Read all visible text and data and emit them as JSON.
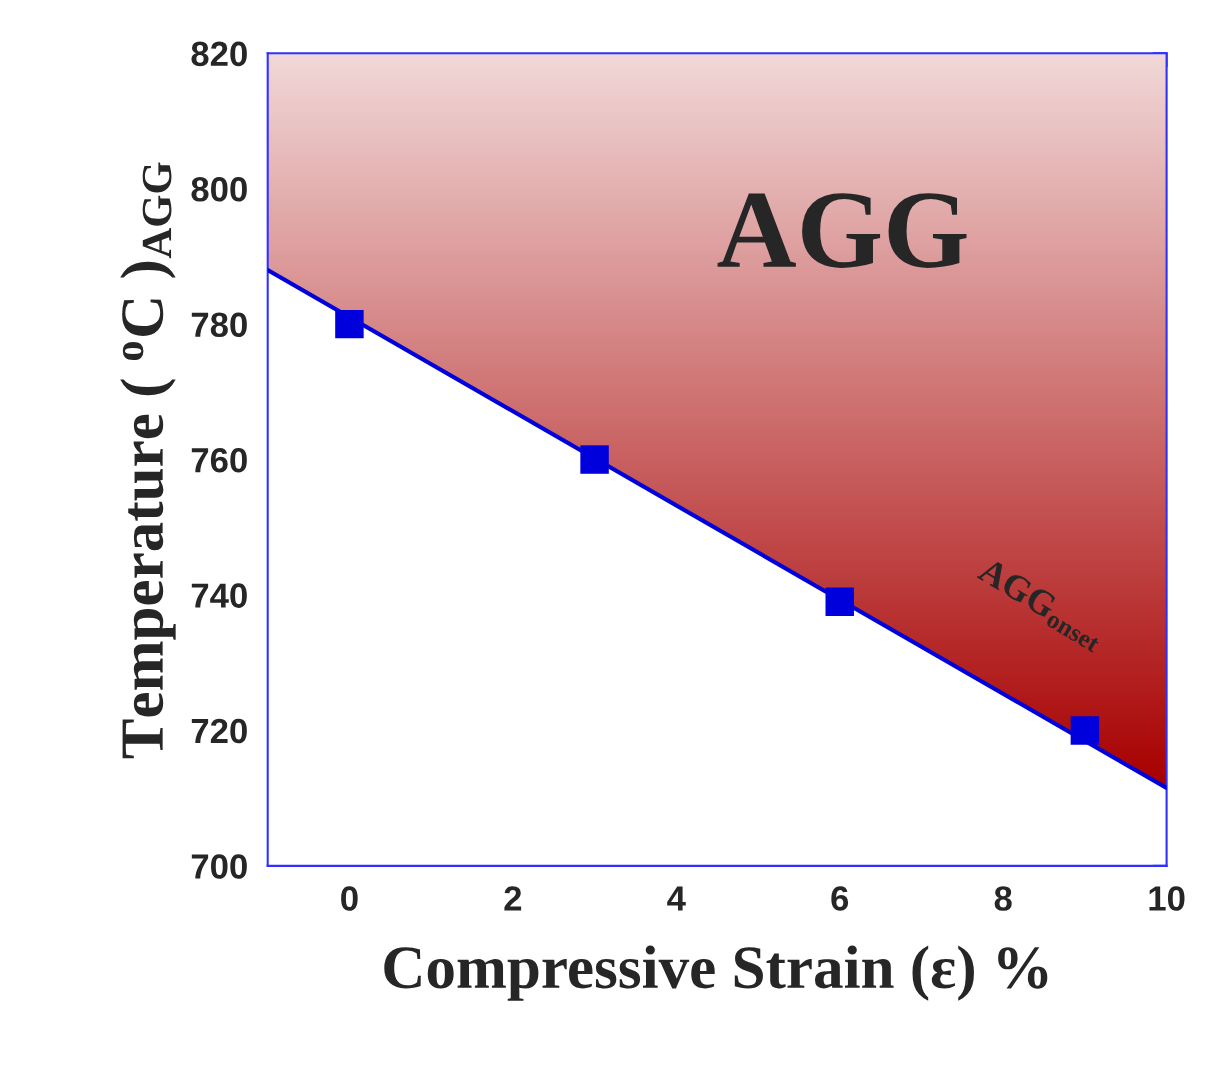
{
  "chart_data": {
    "type": "scatter",
    "xlabel": "Compressive Strain (ε) %",
    "ylabel": "Temperature ( $^{o}$C )$_{AGG}$",
    "x": [
      0,
      3,
      6,
      9
    ],
    "series": [
      {
        "color": "#0000dd",
        "values": [
          780,
          760,
          739,
          720
        ],
        "marker": "square"
      },
      {
        "type": "line",
        "color": "#0000dd",
        "x": [
          -1,
          10
        ],
        "values": [
          788,
          711.5
        ],
        "lower": [
          788,
          711.5
        ],
        "upper": [
          820,
          820
        ]
      }
    ],
    "xlim": [
      -1,
      10
    ],
    "xticks": [
      0,
      2,
      4,
      6,
      8,
      10
    ],
    "ylim": [
      700,
      820
    ],
    "yticks": [
      700,
      720,
      740,
      760,
      780,
      800,
      820
    ],
    "annotations": [
      "AGG",
      "AGG$_{onset}$"
    ],
    "grid": false,
    "legend": false
  }
}
